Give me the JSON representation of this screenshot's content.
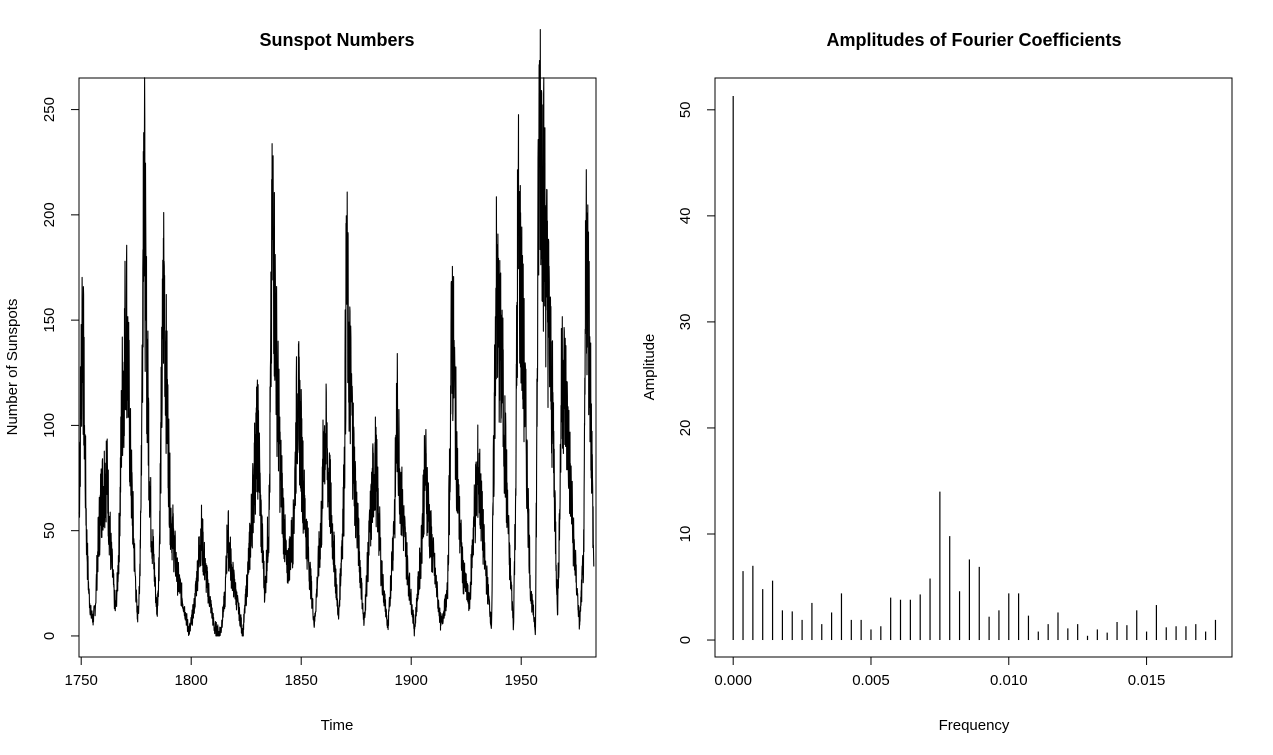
{
  "chart_data": [
    {
      "type": "line",
      "title": "Sunspot Numbers",
      "xlabel": "Time",
      "ylabel": "Number of Sunspots",
      "xlim": [
        1749,
        1984
      ],
      "ylim": [
        -10,
        265
      ],
      "x_ticks": [
        1750,
        1800,
        1850,
        1900,
        1950
      ],
      "y_ticks": [
        0,
        50,
        100,
        150,
        200,
        250
      ],
      "series": [
        {
          "x": [
            1749.0,
            1750.5,
            1751.5,
            1752.5,
            1753.5,
            1754.5,
            1755.5,
            1756.5,
            1757.5,
            1759.0,
            1761.5,
            1763.5,
            1765.5,
            1766.5,
            1767.5,
            1768.5,
            1769.5,
            1770.5,
            1772.5,
            1774.5,
            1775.5,
            1776.5,
            1777.5,
            1778.4,
            1779.5,
            1781.5,
            1784.5,
            1785.5,
            1786.5,
            1787.6,
            1788.5,
            1790.5,
            1793.5,
            1795.5,
            1797.5,
            1798.5,
            1799.5,
            1801.5,
            1804.5,
            1806.5,
            1810.5,
            1812.5,
            1813.5,
            1815.5,
            1816.5,
            1818.5,
            1823.5,
            1826.5,
            1829.5,
            1830.5,
            1831.5,
            1833.5,
            1835.5,
            1837.0,
            1838.5,
            1840.5,
            1843.5,
            1846.5,
            1848.2,
            1849.5,
            1851.5,
            1856.0,
            1859.5,
            1860.3,
            1861.5,
            1864.5,
            1867.0,
            1869.5,
            1870.6,
            1871.5,
            1874.5,
            1878.5,
            1881.5,
            1883.5,
            1884.5,
            1886.5,
            1889.5,
            1892.5,
            1893.5,
            1895.5,
            1898.5,
            1901.5,
            1904.5,
            1905.5,
            1906.5,
            1908.5,
            1913.5,
            1916.5,
            1917.6,
            1918.5,
            1921.5,
            1923.5,
            1926.5,
            1928.5,
            1930.5,
            1933.5,
            1936.5,
            1937.5,
            1938.5,
            1941.5,
            1944.5,
            1946.5,
            1947.5,
            1948.5,
            1951.5,
            1954.3,
            1956.5,
            1957.8,
            1958.5,
            1960.5,
            1964.5,
            1966.5,
            1967.5,
            1968.5,
            1970.5,
            1973.5,
            1976.5,
            1978.5,
            1979.5,
            1980.5,
            1981.5,
            1983.0
          ],
          "y": [
            58,
            159,
            100,
            45,
            20,
            10,
            8,
            15,
            40,
            65,
            80,
            40,
            12,
            25,
            55,
            110,
            130,
            158,
            80,
            30,
            8,
            20,
            100,
            239,
            150,
            60,
            10,
            40,
            110,
            174,
            130,
            60,
            30,
            20,
            10,
            4,
            3,
            15,
            50,
            30,
            4,
            1,
            3,
            20,
            50,
            30,
            1,
            40,
            90,
            95,
            60,
            20,
            60,
            206,
            140,
            80,
            30,
            50,
            115,
            100,
            60,
            5,
            60,
            97,
            90,
            45,
            8,
            70,
            176,
            140,
            70,
            5,
            55,
            85,
            70,
            30,
            3,
            60,
            107,
            65,
            30,
            3,
            40,
            65,
            80,
            50,
            5,
            20,
            85,
            155,
            60,
            30,
            15,
            55,
            80,
            35,
            5,
            80,
            165,
            120,
            40,
            5,
            70,
            201,
            120,
            20,
            4,
            200,
            254,
            200,
            100,
            10,
            60,
            130,
            110,
            50,
            5,
            40,
            189,
            160,
            120,
            33
          ]
        }
      ]
    },
    {
      "type": "bar",
      "title": "Amplitudes of Fourier Coefficients",
      "xlabel": "Frequency",
      "ylabel": "Amplitude",
      "xlim": [
        -0.00066,
        0.0181
      ],
      "ylim": [
        -1.6,
        53
      ],
      "x_ticks": [
        0.0,
        0.005,
        0.01,
        0.015
      ],
      "x_tick_labels": [
        "0.000",
        "0.005",
        "0.010",
        "0.015"
      ],
      "y_ticks": [
        0,
        10,
        20,
        30,
        40,
        50
      ],
      "x": [
        0.0,
        0.000357,
        0.000714,
        0.001071,
        0.001429,
        0.001786,
        0.002143,
        0.0025,
        0.002857,
        0.003214,
        0.003571,
        0.003929,
        0.004286,
        0.004643,
        0.005,
        0.005357,
        0.005714,
        0.006071,
        0.006429,
        0.006786,
        0.007143,
        0.0075,
        0.007857,
        0.008214,
        0.008571,
        0.008929,
        0.009286,
        0.009643,
        0.01,
        0.010357,
        0.010714,
        0.011071,
        0.011429,
        0.011786,
        0.012143,
        0.0125,
        0.012857,
        0.013214,
        0.013571,
        0.013929,
        0.014286,
        0.014643,
        0.015,
        0.015357,
        0.015714,
        0.016071,
        0.016429,
        0.016786,
        0.017143,
        0.0175
      ],
      "values": [
        51.3,
        6.5,
        7.0,
        4.8,
        5.6,
        2.8,
        2.7,
        1.9,
        3.5,
        1.5,
        2.6,
        4.4,
        1.9,
        1.9,
        1.0,
        1.3,
        4.0,
        3.8,
        3.8,
        4.3,
        5.8,
        14.0,
        9.8,
        4.6,
        7.6,
        6.9,
        2.2,
        2.8,
        4.4,
        4.4,
        2.3,
        0.8,
        1.5,
        2.6,
        1.1,
        1.5,
        0.4,
        1.0,
        0.7,
        1.7,
        1.4,
        2.8,
        0.8,
        3.3,
        1.2,
        1.3,
        1.3,
        1.5,
        0.8,
        1.9
      ]
    }
  ]
}
